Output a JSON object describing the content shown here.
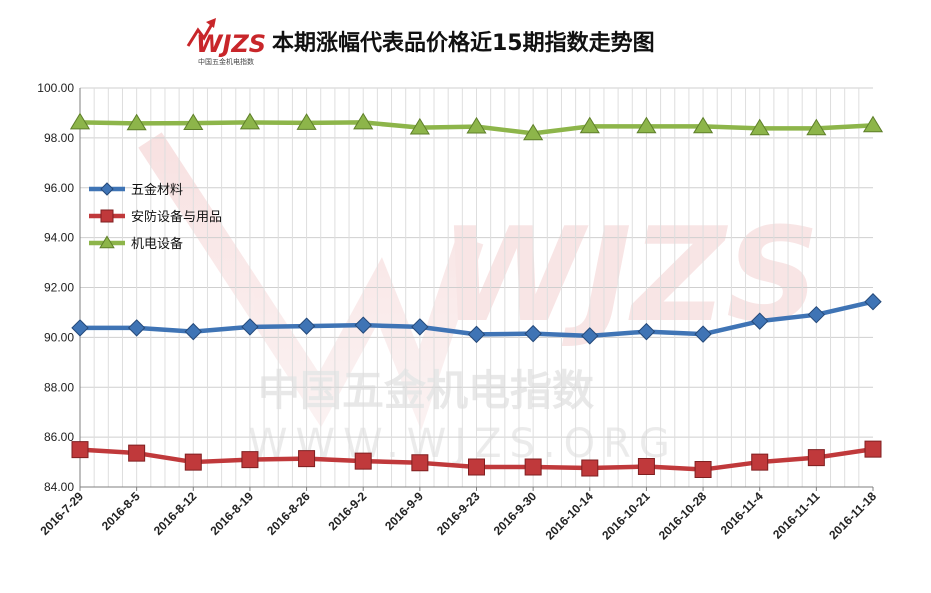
{
  "title": "本期涨幅代表品价格近15期指数走势图",
  "logo": {
    "main": "WJZS",
    "sub": "中国五金机电指数"
  },
  "watermark": {
    "main": "WJZS",
    "cn": "中国五金机电指数",
    "url": "WWW.WJZS.ORG"
  },
  "colors": {
    "series": [
      "#3f74b5",
      "#c0393b",
      "#8db54a"
    ],
    "grid": "#cfcfcf",
    "axis": "#7f7f7f"
  },
  "chart_data": {
    "type": "line",
    "title": "本期涨幅代表品价格近15期指数走势图",
    "xlabel": "",
    "ylabel": "",
    "ylim": [
      84,
      100
    ],
    "yticks": [
      "84.00",
      "86.00",
      "88.00",
      "90.00",
      "92.00",
      "94.00",
      "96.00",
      "98.00",
      "100.00"
    ],
    "grid": true,
    "legend_position": "left-middle",
    "categories": [
      "2016-7-29",
      "2016-8-5",
      "2016-8-12",
      "2016-8-19",
      "2016-8-26",
      "2016-9-2",
      "2016-9-9",
      "2016-9-23",
      "2016-9-30",
      "2016-10-14",
      "2016-10-21",
      "2016-10-28",
      "2016-11-4",
      "2016-11-11",
      "2016-11-18"
    ],
    "series": [
      {
        "name": "五金材料",
        "marker": "diamond",
        "values": [
          90.38,
          90.38,
          90.23,
          90.42,
          90.45,
          90.49,
          90.42,
          90.12,
          90.15,
          90.06,
          90.23,
          90.13,
          90.65,
          90.91,
          91.43
        ]
      },
      {
        "name": "安防设备与用品",
        "marker": "square",
        "values": [
          85.5,
          85.36,
          85.0,
          85.1,
          85.14,
          85.04,
          84.97,
          84.8,
          84.8,
          84.76,
          84.82,
          84.7,
          85.0,
          85.18,
          85.52
        ]
      },
      {
        "name": "机电设备",
        "marker": "triangle",
        "values": [
          98.62,
          98.58,
          98.59,
          98.62,
          98.6,
          98.62,
          98.41,
          98.45,
          98.18,
          98.46,
          98.46,
          98.46,
          98.38,
          98.38,
          98.5
        ]
      }
    ]
  }
}
